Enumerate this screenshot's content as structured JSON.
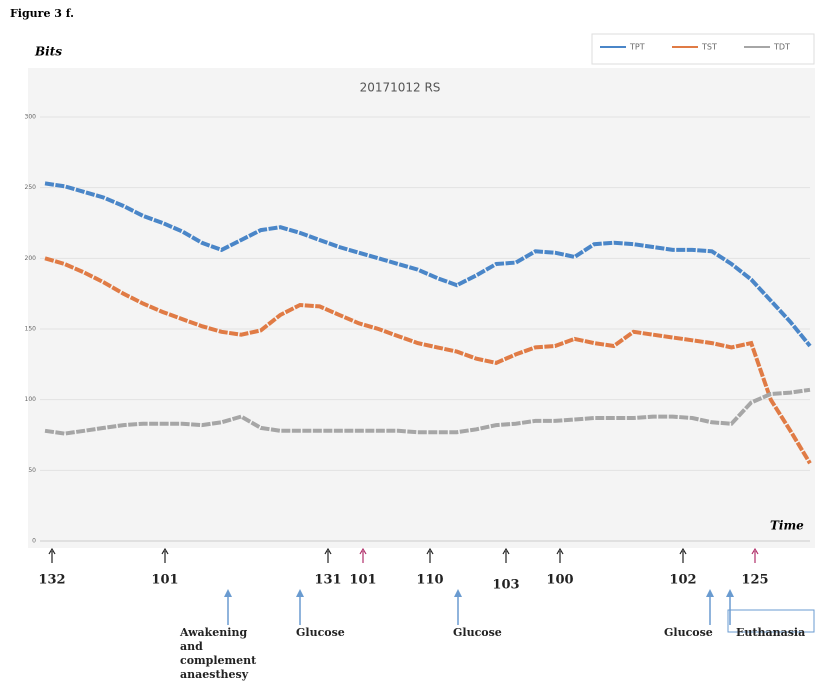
{
  "chart_data": {
    "type": "line",
    "figure_label": "Figure 3 f.",
    "title": "20171012 RS",
    "y_label": "Bits",
    "x_label": "Time",
    "x": [
      0,
      1,
      2,
      3,
      4,
      5,
      6,
      7,
      8,
      9,
      10,
      11,
      12,
      13,
      14,
      15,
      16,
      17,
      18,
      19,
      20,
      21,
      22,
      23,
      24,
      25,
      26,
      27,
      28,
      29,
      30,
      31,
      32,
      33,
      34,
      35,
      36,
      37,
      38,
      39
    ],
    "xlim": [
      0,
      39
    ],
    "ylim": [
      0,
      300
    ],
    "yticks": [
      0,
      50,
      100,
      150,
      200,
      250,
      300
    ],
    "grid": true,
    "legend": "top-right",
    "series": [
      {
        "name": "TPT",
        "color": "#4a86c8",
        "values": [
          253,
          251,
          247,
          243,
          237,
          230,
          225,
          219,
          211,
          206,
          213,
          220,
          222,
          218,
          213,
          208,
          204,
          200,
          196,
          192,
          186,
          181,
          188,
          196,
          197,
          205,
          204,
          201,
          210,
          211,
          210,
          208,
          206,
          206,
          205,
          196,
          185,
          170,
          155,
          138
        ]
      },
      {
        "name": "TST",
        "color": "#e07b45",
        "values": [
          200,
          196,
          190,
          183,
          175,
          168,
          162,
          157,
          152,
          148,
          146,
          149,
          160,
          167,
          166,
          160,
          154,
          150,
          145,
          140,
          137,
          134,
          129,
          126,
          132,
          137,
          138,
          143,
          140,
          138,
          148,
          146,
          144,
          142,
          140,
          137,
          140,
          100,
          78,
          55
        ]
      },
      {
        "name": "TDT",
        "color": "#a6a6a6",
        "values": [
          78,
          76,
          78,
          80,
          82,
          83,
          83,
          83,
          82,
          84,
          88,
          80,
          78,
          78,
          78,
          78,
          78,
          78,
          78,
          77,
          77,
          77,
          79,
          82,
          83,
          85,
          85,
          86,
          87,
          87,
          87,
          88,
          88,
          87,
          84,
          83,
          98,
          104,
          105,
          107
        ]
      }
    ],
    "arrow_numbers": [
      132,
      101,
      131,
      101,
      110,
      103,
      100,
      102,
      125
    ],
    "event_labels": [
      [
        "Awakening",
        "and",
        "complement",
        "anaesthesy"
      ],
      [
        "Glucose"
      ],
      [
        "Glucose"
      ],
      [
        "Glucose"
      ],
      [
        "Euthanasia"
      ]
    ]
  }
}
